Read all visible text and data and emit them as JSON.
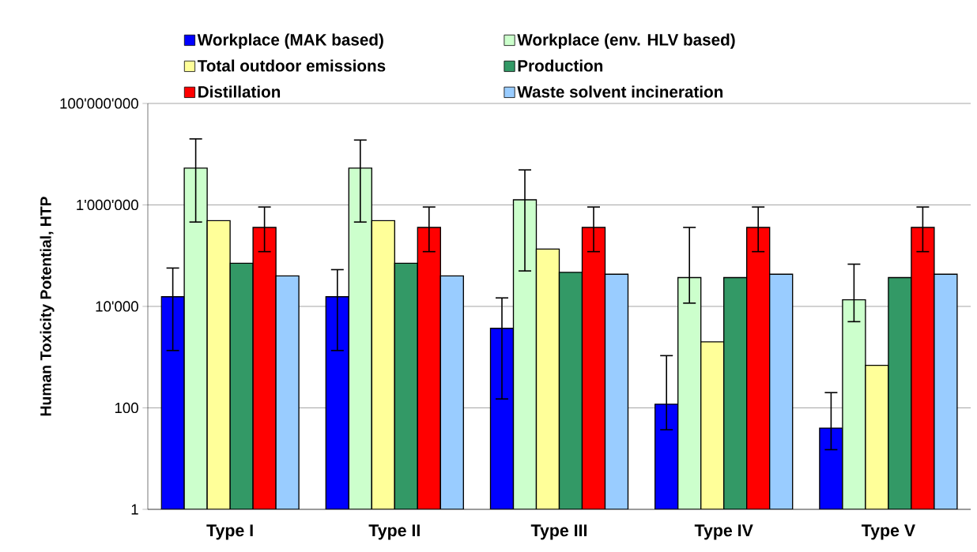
{
  "chart_data": {
    "type": "bar",
    "ylabel": "Human Toxicity Potential, HTP",
    "log": "y",
    "grid": "y",
    "legend": "top",
    "categories": [
      "Type I",
      "Type II",
      "Type III",
      "Type IV",
      "Type V"
    ],
    "ylim": [
      1,
      100000000
    ],
    "yticks": [
      {
        "value": 1,
        "label": "1"
      },
      {
        "value": 100,
        "label": "100"
      },
      {
        "value": 10000,
        "label": "10'000"
      },
      {
        "value": 1000000,
        "label": "1'000'000"
      },
      {
        "value": 100000000,
        "label": "100'000'000"
      }
    ],
    "series": [
      {
        "name": "Workplace (MAK based)",
        "color": "#0000ff",
        "values": [
          15500,
          15500,
          3700,
          118,
          40
        ],
        "errors": [
          [
            1350,
            57000
          ],
          [
            1350,
            53000
          ],
          [
            150,
            14700
          ],
          [
            37,
            1070
          ],
          [
            15,
            200
          ]
        ]
      },
      {
        "name": "Workplace (env. HLV based)",
        "color": "#ccffcc",
        "values": [
          5300000,
          5300000,
          1260000,
          37000,
          13500
        ],
        "errors": [
          [
            460000,
            20000000
          ],
          [
            460000,
            19000000
          ],
          [
            50000,
            4900000
          ],
          [
            11600,
            360000
          ],
          [
            5000,
            68000
          ]
        ]
      },
      {
        "name": "Total outdoor emissions",
        "color": "#ffff99",
        "values": [
          490000,
          490000,
          135000,
          2000,
          690
        ]
      },
      {
        "name": "Production",
        "color": "#339966",
        "values": [
          71000,
          71000,
          47000,
          37000,
          37000
        ]
      },
      {
        "name": "Distillation",
        "color": "#ff0000",
        "values": [
          360000,
          360000,
          360000,
          360000,
          360000
        ],
        "errors": [
          [
            120000,
            910000
          ],
          [
            120000,
            910000
          ],
          [
            120000,
            910000
          ],
          [
            120000,
            910000
          ],
          [
            120000,
            910000
          ]
        ]
      },
      {
        "name": "Waste solvent incineration",
        "color": "#99ccff",
        "values": [
          40000,
          40000,
          43000,
          43000,
          43000
        ]
      }
    ]
  }
}
